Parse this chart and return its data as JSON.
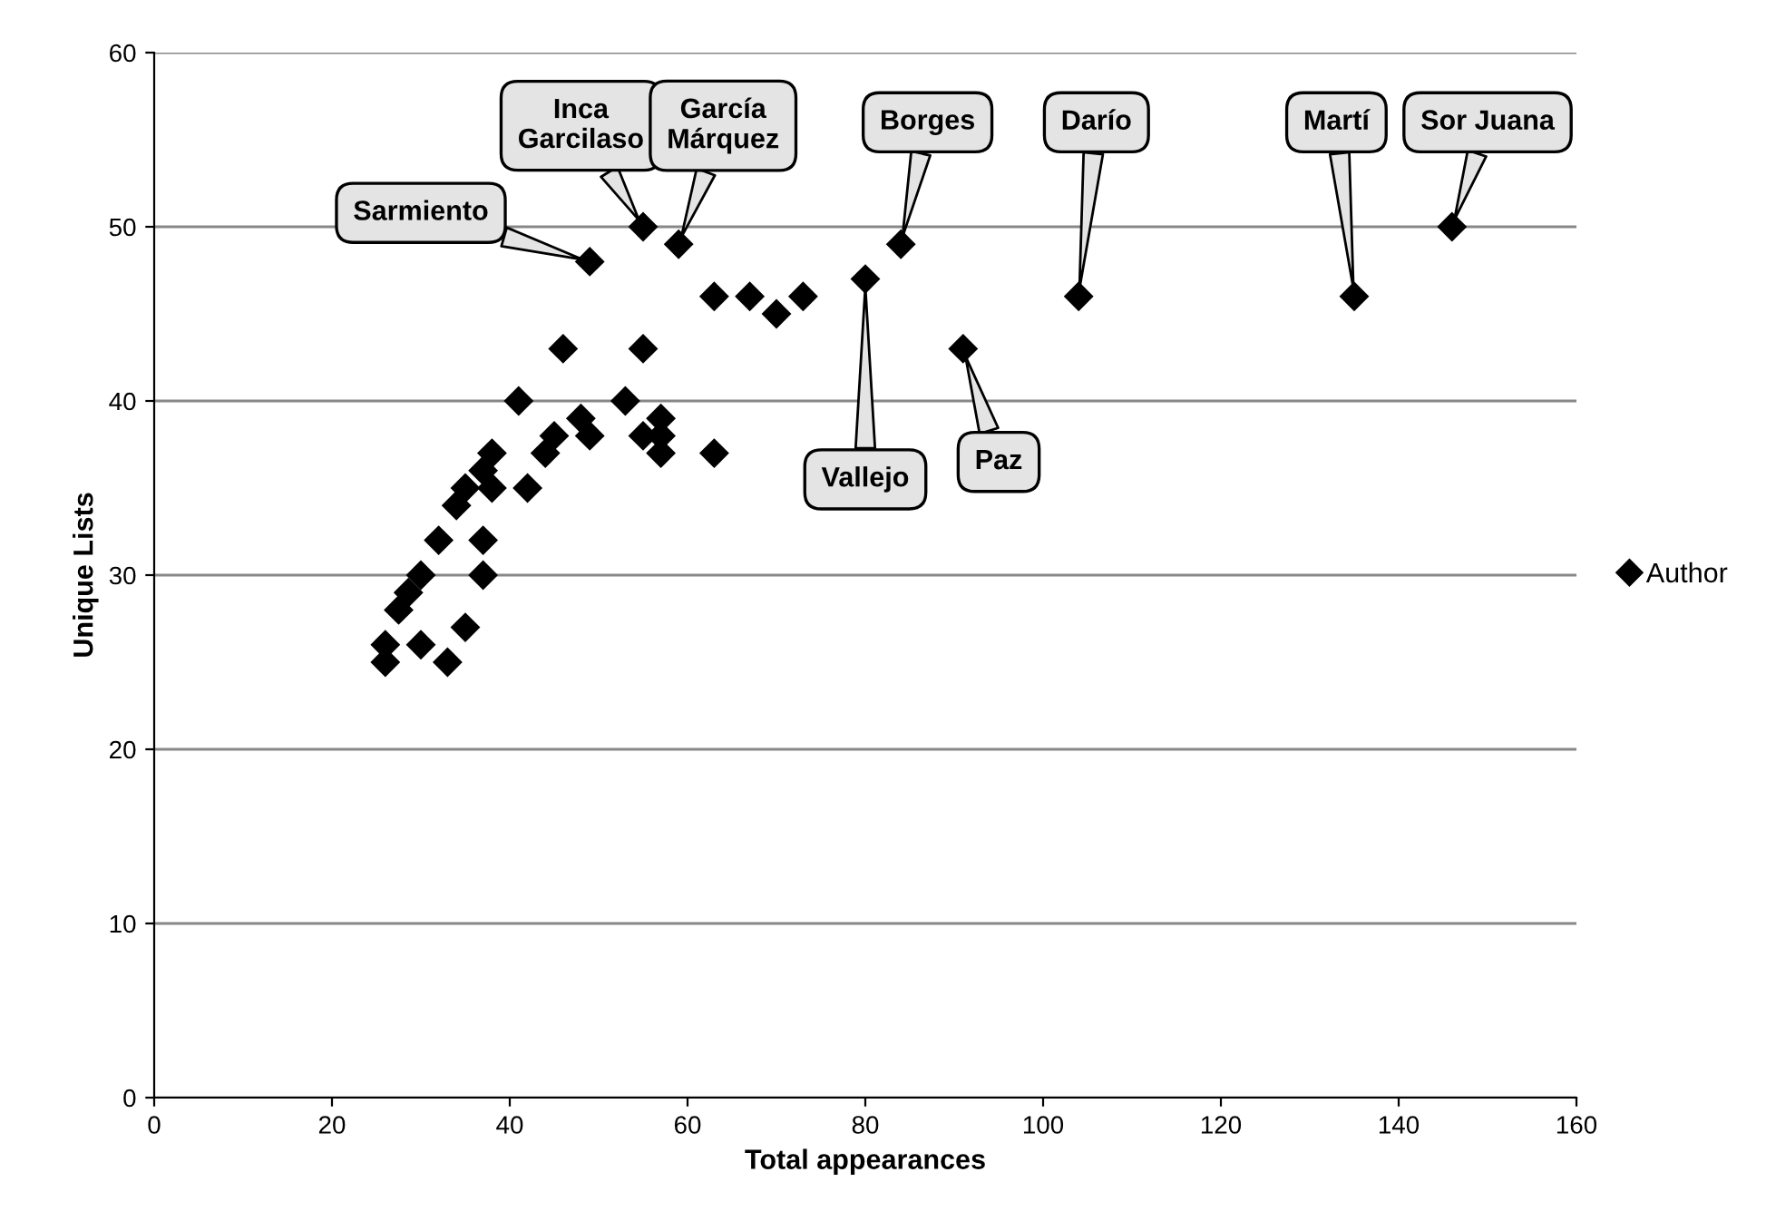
{
  "chart_data": {
    "type": "scatter",
    "xlabel": "Total appearances",
    "ylabel": "Unique Lists",
    "xlim": [
      0,
      160
    ],
    "xticks": [
      0,
      20,
      40,
      60,
      80,
      100,
      120,
      140,
      160
    ],
    "ylim": [
      0,
      60
    ],
    "yticks": [
      0,
      10,
      20,
      30,
      40,
      50,
      60
    ],
    "grid": "y",
    "legend": "right",
    "marker": "diamond",
    "series": [
      {
        "name": "Author",
        "color": "#000000",
        "x": [
          26,
          26,
          30,
          33,
          35,
          37,
          30,
          27.5,
          28.6,
          32,
          37,
          34,
          35,
          38,
          42,
          37,
          38,
          41,
          46,
          55,
          53,
          48,
          49,
          45,
          44,
          55,
          57,
          57,
          57,
          63,
          63,
          67,
          70,
          73,
          49,
          55,
          59,
          84,
          80,
          91,
          104,
          135,
          146
        ],
        "values": [
          26,
          25,
          26,
          25,
          27,
          30,
          30,
          28,
          29,
          32,
          32,
          34,
          35,
          35,
          35,
          36,
          37,
          40,
          43,
          43,
          40,
          39,
          38,
          38,
          37,
          38,
          39,
          38,
          37,
          37,
          46,
          46,
          45,
          46,
          48,
          50,
          49,
          49,
          47,
          43,
          46,
          46,
          50
        ]
      }
    ],
    "annotations": [
      {
        "text": "Sarmiento",
        "x": 49,
        "y": 48
      },
      {
        "text": "Inca\nGarcilaso",
        "x": 55,
        "y": 50
      },
      {
        "text": "García\nMárquez",
        "x": 59,
        "y": 49
      },
      {
        "text": "Borges",
        "x": 84,
        "y": 49
      },
      {
        "text": "Darío",
        "x": 104,
        "y": 46
      },
      {
        "text": "Martí",
        "x": 135,
        "y": 46
      },
      {
        "text": "Sor Juana",
        "x": 146,
        "y": 50
      },
      {
        "text": "Vallejo",
        "x": 80,
        "y": 47
      },
      {
        "text": "Paz",
        "x": 91,
        "y": 43
      }
    ]
  }
}
